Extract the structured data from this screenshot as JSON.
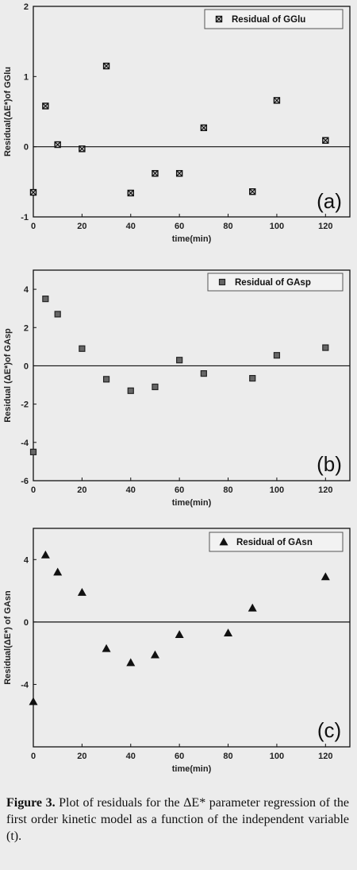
{
  "chart_data": [
    {
      "type": "scatter",
      "panel": "(a)",
      "xlabel": "time(min)",
      "ylabel": "Residual(ΔE*)of GGlu",
      "xlim": [
        0,
        130
      ],
      "ylim": [
        -1,
        2
      ],
      "xticks": [
        0,
        20,
        40,
        60,
        80,
        100,
        120
      ],
      "yticks": [
        -1,
        0,
        1,
        2
      ],
      "zero_line": true,
      "legend_position": "top-right",
      "series": [
        {
          "name": "Residual of GGlu",
          "marker": "square-x",
          "x": [
            0,
            5,
            10,
            20,
            30,
            40,
            50,
            60,
            70,
            90,
            100,
            120
          ],
          "y": [
            -0.65,
            0.58,
            0.03,
            -0.03,
            1.15,
            -0.66,
            -0.38,
            -0.38,
            0.27,
            -0.64,
            0.66,
            0.09
          ]
        }
      ]
    },
    {
      "type": "scatter",
      "panel": "(b)",
      "xlabel": "time(min)",
      "ylabel": "Residual (ΔE*)of GAsp",
      "xlim": [
        0,
        130
      ],
      "ylim": [
        -6,
        5
      ],
      "xticks": [
        0,
        20,
        40,
        60,
        80,
        100,
        120
      ],
      "yticks": [
        -6,
        -4,
        -2,
        0,
        2,
        4
      ],
      "zero_line": true,
      "legend_position": "top-right",
      "series": [
        {
          "name": "Residual of GAsp",
          "marker": "square",
          "x": [
            0,
            5,
            10,
            20,
            30,
            40,
            50,
            60,
            70,
            90,
            100,
            120
          ],
          "y": [
            -4.5,
            3.5,
            2.7,
            0.9,
            -0.7,
            -1.3,
            -1.1,
            0.3,
            -0.4,
            -0.65,
            0.55,
            0.95
          ]
        }
      ]
    },
    {
      "type": "scatter",
      "panel": "(c)",
      "xlabel": "time(min)",
      "ylabel": "Residual(ΔE*) of GAsn",
      "xlim": [
        0,
        130
      ],
      "ylim": [
        -8,
        6
      ],
      "xticks": [
        0,
        20,
        40,
        60,
        80,
        100,
        120
      ],
      "yticks": [
        -4,
        0,
        4
      ],
      "zero_line": true,
      "legend_position": "top-right",
      "series": [
        {
          "name": "Residual of GAsn",
          "marker": "triangle",
          "x": [
            0,
            5,
            10,
            20,
            30,
            40,
            50,
            60,
            80,
            90,
            120
          ],
          "y": [
            -5.1,
            4.3,
            3.2,
            1.9,
            -1.7,
            -2.6,
            -2.1,
            -0.8,
            -0.7,
            0.9,
            2.9
          ]
        }
      ]
    }
  ],
  "caption": {
    "label": "Figure 3.",
    "text": " Plot of residuals for the ΔE* parameter regression of the first order kinetic model as a function of the independent variable (t)."
  }
}
